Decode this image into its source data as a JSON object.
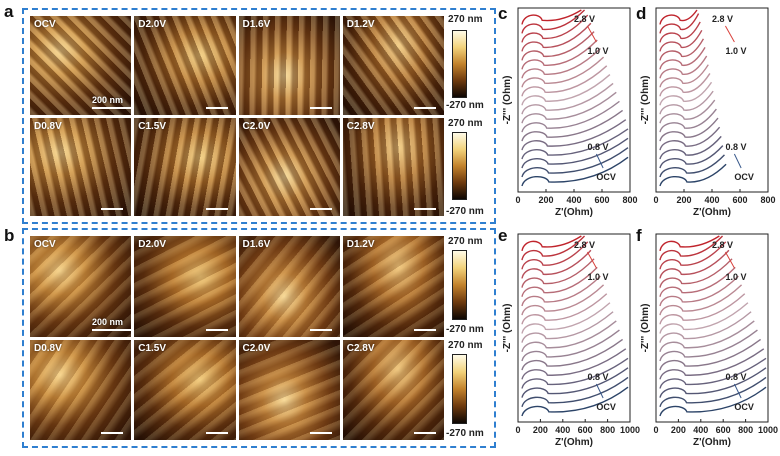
{
  "panels": {
    "a": "a",
    "b": "b",
    "c": "c",
    "d": "d",
    "e": "e",
    "f": "f"
  },
  "afm_a": {
    "labels": [
      "OCV",
      "D2.0V",
      "D1.6V",
      "D1.2V",
      "D0.8V",
      "C1.5V",
      "C2.0V",
      "C2.8V"
    ],
    "scale_bar": "200 nm",
    "colorbar_top": "270 nm",
    "colorbar_bottom": "-270 nm",
    "palette": "afm-copper"
  },
  "afm_b": {
    "labels": [
      "OCV",
      "D2.0V",
      "D1.6V",
      "D1.2V",
      "D0.8V",
      "C1.5V",
      "C2.0V",
      "C2.8V"
    ],
    "scale_bar": "200 nm",
    "colorbar_top": "270 nm",
    "colorbar_bottom": "-270 nm",
    "palette": "afm-copper"
  },
  "chart_data": [
    {
      "panel": "c",
      "type": "line",
      "xlabel": "Z'(Ohm)",
      "ylabel": "-Z''' (Ohm)",
      "xlim": [
        0,
        800
      ],
      "xticks": [
        "0",
        "200",
        "400",
        "600",
        "800"
      ],
      "annotations": [
        "2.8 V",
        "1.0 V",
        "0.8 V",
        "OCV"
      ],
      "series_count": 19,
      "color_start": "#2c4468",
      "color_end": "#c0242c"
    },
    {
      "panel": "d",
      "type": "line",
      "xlabel": "Z'(Ohm)",
      "ylabel": "-Z''' (Ohm)",
      "xlim": [
        0,
        800
      ],
      "xticks": [
        "0",
        "200",
        "400",
        "600",
        "800"
      ],
      "annotations": [
        "2.8 V",
        "1.0 V",
        "0.8 V",
        "OCV"
      ],
      "series_count": 19,
      "color_start": "#2c4468",
      "color_end": "#c0242c"
    },
    {
      "panel": "e",
      "type": "line",
      "xlabel": "Z'(Ohm)",
      "ylabel": "-Z''' (Ohm)",
      "xlim": [
        0,
        1000
      ],
      "xticks": [
        "0",
        "200",
        "400",
        "600",
        "800",
        "1000"
      ],
      "annotations": [
        "2.8 V",
        "1.0 V",
        "0.8 V",
        "OCV"
      ],
      "series_count": 19,
      "color_start": "#2c4468",
      "color_end": "#c0242c"
    },
    {
      "panel": "f",
      "type": "line",
      "xlabel": "Z'(Ohm)",
      "ylabel": "-Z''' (Ohm)",
      "xlim": [
        0,
        1000
      ],
      "xticks": [
        "0",
        "200",
        "400",
        "600",
        "800",
        "1000"
      ],
      "annotations": [
        "2.8 V",
        "1.0 V",
        "0.8 V",
        "OCV"
      ],
      "series_count": 19,
      "color_start": "#2c4468",
      "color_end": "#c0242c"
    }
  ]
}
